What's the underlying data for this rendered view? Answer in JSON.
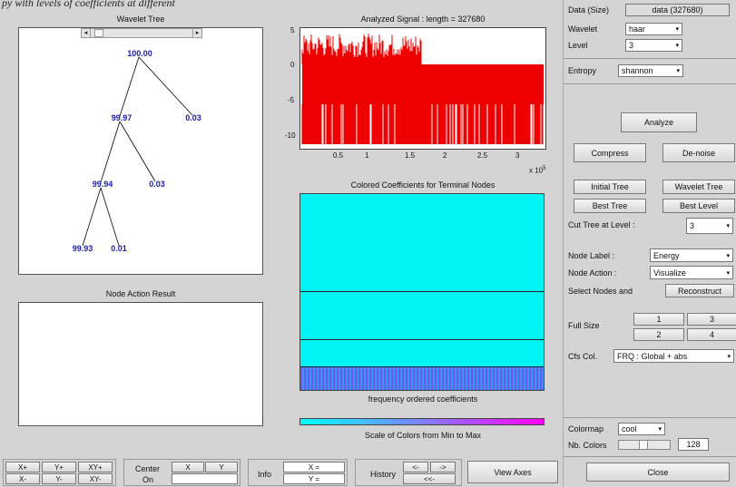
{
  "caption": "py with levels of coefficients at different",
  "wavelet_tree": {
    "title": "Wavelet Tree",
    "scroll_left": "◂",
    "scroll_right": "▸",
    "nodes": [
      "100.00",
      "99.97",
      "0.03",
      "99.94",
      "0.03",
      "99.93",
      "0.01"
    ]
  },
  "node_action_result": {
    "title": "Node Action Result"
  },
  "analyzed_signal": {
    "title": "Analyzed Signal : length = 327680",
    "yticks": [
      "5",
      "0",
      "-5",
      "-10"
    ],
    "xticks": [
      "0.5",
      "1",
      "1.5",
      "2",
      "2.5",
      "3"
    ],
    "xscale": "x 10",
    "xscale_exp": "5",
    "color": "#ee0000"
  },
  "colored_coeffs": {
    "title": "Colored Coefficients for Terminal Nodes",
    "footer": "frequency ordered coefficients",
    "fill": "#00f4f4"
  },
  "scale_of_colors": {
    "label": "Scale of Colors from Min to Max"
  },
  "right_panel": {
    "data_label": "Data (Size)",
    "data_value": "data (327680)",
    "wavelet_label": "Wavelet",
    "wavelet_value": "haar",
    "level_label": "Level",
    "level_value": "3",
    "entropy_label": "Entropy",
    "entropy_value": "shannon",
    "analyze": "Analyze",
    "compress": "Compress",
    "denoise": "De-noise",
    "initial_tree": "Initial Tree",
    "wavelet_tree_btn": "Wavelet Tree",
    "best_tree": "Best Tree",
    "best_level": "Best Level",
    "cut_tree_label": "Cut Tree at Level :",
    "cut_tree_value": "3",
    "node_label_label": "Node Label :",
    "node_label_value": "Energy",
    "node_action_label": "Node Action :",
    "node_action_value": "Visualize",
    "select_nodes_label": "Select Nodes and",
    "reconstruct": "Reconstruct",
    "full_size_label": "Full Size",
    "fs1": "1",
    "fs2": "2",
    "fs3": "3",
    "fs4": "4",
    "cfs_label": "Cfs Col.",
    "cfs_value": "FRQ : Global + abs",
    "colormap_label": "Colormap",
    "colormap_value": "cool",
    "nb_colors_label": "Nb. Colors",
    "nb_colors_value": "128",
    "close": "Close"
  },
  "bottom_toolbar": {
    "xplus": "X+",
    "yplus": "Y+",
    "xyplus": "XY+",
    "xminus": "X-",
    "yminus": "Y-",
    "xyminus": "XY-",
    "center": "Center",
    "on": "On",
    "x": "X",
    "y": "Y",
    "info": "Info",
    "xeq": "X =",
    "yeq": "Y =",
    "history": "History",
    "back": "<-",
    "fwd": "->",
    "backback": "<<-",
    "view_axes": "View Axes"
  },
  "arrow_glyph": "▾"
}
